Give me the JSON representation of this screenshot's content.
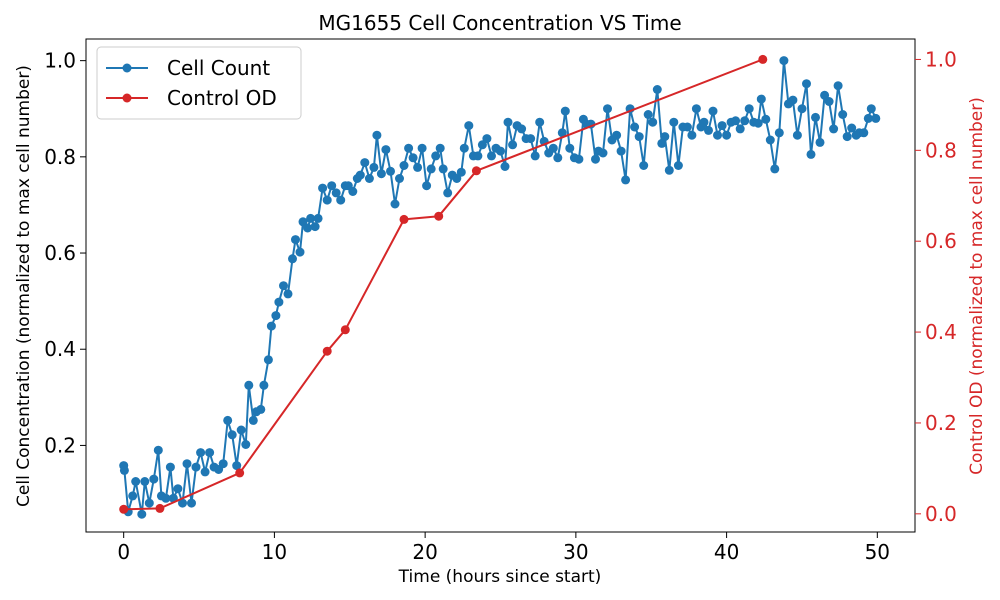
{
  "chart_data": {
    "type": "line",
    "title": "MG1655 Cell Concentration VS Time",
    "xlabel": "Time (hours since start)",
    "ylabel_left": "Cell Concentration (normalized to max cell number)",
    "ylabel_right": "Control OD (normalized to max cell number)",
    "xlim": [
      -2.5,
      52.5
    ],
    "ylim_left": [
      0.02,
      1.045
    ],
    "ylim_right": [
      -0.04,
      1.045
    ],
    "x_ticks": [
      0,
      10,
      20,
      30,
      40,
      50
    ],
    "y_ticks_left": [
      0.2,
      0.4,
      0.6,
      0.8,
      1.0
    ],
    "y_ticks_right": [
      0.0,
      0.2,
      0.4,
      0.6,
      0.8,
      1.0
    ],
    "x_tick_labels": [
      "0",
      "10",
      "20",
      "30",
      "40",
      "50"
    ],
    "y_tick_labels_left": [
      "0.2",
      "0.4",
      "0.6",
      "0.8",
      "1.0"
    ],
    "y_tick_labels_right": [
      "0.0",
      "0.2",
      "0.4",
      "0.6",
      "0.8",
      "1.0"
    ],
    "grid": false,
    "legend_position": "top-left",
    "series": [
      {
        "name": "Cell Count",
        "axis": "left",
        "color": "#1f77b4",
        "marker": "circle",
        "x": [
          0,
          0.05,
          0.3,
          0.6,
          0.8,
          1.2,
          1.4,
          1.7,
          2.0,
          2.3,
          2.5,
          2.8,
          3.1,
          3.3,
          3.6,
          3.9,
          4.2,
          4.5,
          4.8,
          5.1,
          5.4,
          5.7,
          6.0,
          6.3,
          6.6,
          6.9,
          7.2,
          7.5,
          7.8,
          8.1,
          8.3,
          8.6,
          8.8,
          9.1,
          9.3,
          9.6,
          9.8,
          10.1,
          10.3,
          10.6,
          10.9,
          11.2,
          11.4,
          11.7,
          11.9,
          12.2,
          12.4,
          12.7,
          12.9,
          13.2,
          13.5,
          13.8,
          14.1,
          14.4,
          14.7,
          14.9,
          15.2,
          15.5,
          15.7,
          16.0,
          16.3,
          16.6,
          16.8,
          17.1,
          17.4,
          17.7,
          18.0,
          18.3,
          18.6,
          18.9,
          19.2,
          19.5,
          19.8,
          20.1,
          20.4,
          20.7,
          21.0,
          21.2,
          21.5,
          21.8,
          22.1,
          22.4,
          22.6,
          22.9,
          23.2,
          23.5,
          23.8,
          24.1,
          24.4,
          24.7,
          25.0,
          25.3,
          25.5,
          25.8,
          26.1,
          26.4,
          26.7,
          27.0,
          27.3,
          27.6,
          27.9,
          28.2,
          28.5,
          28.8,
          29.1,
          29.3,
          29.6,
          29.9,
          30.2,
          30.5,
          30.7,
          31.0,
          31.3,
          31.5,
          31.8,
          32.1,
          32.4,
          32.7,
          33.0,
          33.3,
          33.6,
          33.9,
          34.2,
          34.5,
          34.8,
          35.1,
          35.4,
          35.7,
          35.9,
          36.2,
          36.5,
          36.8,
          37.1,
          37.4,
          37.7,
          38.0,
          38.3,
          38.5,
          38.8,
          39.1,
          39.4,
          39.7,
          40.0,
          40.3,
          40.6,
          40.9,
          41.2,
          41.5,
          41.8,
          42.1,
          42.3,
          42.6,
          42.9,
          43.2,
          43.5,
          43.8,
          44.1,
          44.4,
          44.7,
          45.0,
          45.3,
          45.6,
          45.9,
          46.2,
          46.5,
          46.8,
          47.1,
          47.4,
          47.7,
          48.0,
          48.3,
          48.6,
          48.8,
          49.1,
          49.4,
          49.6,
          49.9
        ],
        "y": [
          0.158,
          0.148,
          0.062,
          0.095,
          0.125,
          0.057,
          0.125,
          0.08,
          0.13,
          0.19,
          0.095,
          0.09,
          0.155,
          0.09,
          0.11,
          0.08,
          0.162,
          0.08,
          0.155,
          0.185,
          0.145,
          0.185,
          0.155,
          0.15,
          0.162,
          0.252,
          0.222,
          0.158,
          0.232,
          0.202,
          0.325,
          0.252,
          0.27,
          0.275,
          0.325,
          0.378,
          0.448,
          0.47,
          0.498,
          0.532,
          0.515,
          0.588,
          0.628,
          0.602,
          0.665,
          0.652,
          0.672,
          0.655,
          0.672,
          0.735,
          0.71,
          0.74,
          0.725,
          0.71,
          0.74,
          0.74,
          0.728,
          0.755,
          0.762,
          0.788,
          0.755,
          0.778,
          0.845,
          0.765,
          0.815,
          0.77,
          0.702,
          0.755,
          0.782,
          0.818,
          0.798,
          0.778,
          0.818,
          0.74,
          0.775,
          0.802,
          0.818,
          0.775,
          0.725,
          0.762,
          0.755,
          0.768,
          0.818,
          0.865,
          0.802,
          0.802,
          0.825,
          0.838,
          0.802,
          0.818,
          0.812,
          0.78,
          0.872,
          0.825,
          0.865,
          0.858,
          0.838,
          0.838,
          0.802,
          0.872,
          0.832,
          0.808,
          0.818,
          0.798,
          0.85,
          0.895,
          0.818,
          0.798,
          0.795,
          0.878,
          0.868,
          0.868,
          0.795,
          0.812,
          0.808,
          0.9,
          0.835,
          0.845,
          0.812,
          0.752,
          0.9,
          0.862,
          0.842,
          0.782,
          0.888,
          0.872,
          0.94,
          0.828,
          0.842,
          0.772,
          0.872,
          0.782,
          0.862,
          0.862,
          0.845,
          0.9,
          0.862,
          0.872,
          0.855,
          0.895,
          0.845,
          0.865,
          0.845,
          0.872,
          0.875,
          0.858,
          0.875,
          0.9,
          0.872,
          0.87,
          0.92,
          0.878,
          0.835,
          0.775,
          0.85,
          1.0,
          0.91,
          0.918,
          0.845,
          0.9,
          0.952,
          0.805,
          0.882,
          0.83,
          0.928,
          0.915,
          0.858,
          0.948,
          0.888,
          0.842,
          0.86,
          0.845,
          0.85,
          0.85,
          0.88,
          0.9,
          0.88
        ]
      },
      {
        "name": "Control OD",
        "axis": "right",
        "color": "#d62728",
        "marker": "circle",
        "x": [
          0,
          2.4,
          7.7,
          13.5,
          14.7,
          18.6,
          20.9,
          23.4,
          42.4
        ],
        "y": [
          0.01,
          0.012,
          0.09,
          0.358,
          0.405,
          0.648,
          0.655,
          0.755,
          1.0
        ]
      }
    ]
  }
}
